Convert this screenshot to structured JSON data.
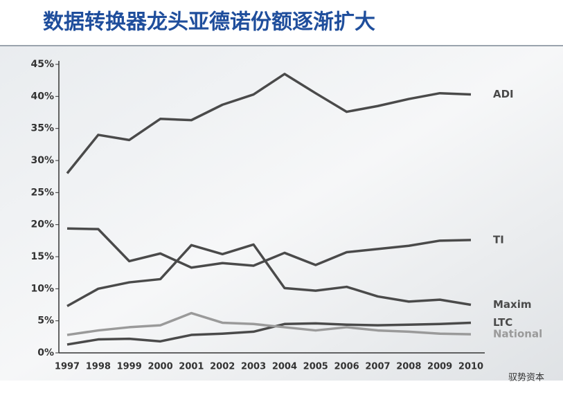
{
  "chart_data": {
    "type": "line",
    "title": "数据转换器龙头亚德诺份额逐渐扩大",
    "categories": [
      "1997",
      "1998",
      "1999",
      "2000",
      "2001",
      "2002",
      "2003",
      "2004",
      "2005",
      "2006",
      "2007",
      "2008",
      "2009",
      "2010"
    ],
    "series": [
      {
        "name": "ADI",
        "color": "#4a4a4a",
        "values": [
          28,
          34,
          33.2,
          36.5,
          36.3,
          38.7,
          40.3,
          43.5,
          40.5,
          37.6,
          38.5,
          39.6,
          40.5,
          40.3
        ]
      },
      {
        "name": "TI",
        "color": "#4a4a4a",
        "values": [
          19.4,
          19.3,
          14.3,
          15.5,
          13.3,
          14,
          13.6,
          15.6,
          13.7,
          15.7,
          16.2,
          16.7,
          17.5,
          17.6
        ]
      },
      {
        "name": "Maxim",
        "color": "#4a4a4a",
        "values": [
          7.3,
          10,
          11,
          11.5,
          16.8,
          15.4,
          16.9,
          10.1,
          9.7,
          10.3,
          8.8,
          8,
          8.3,
          7.5
        ]
      },
      {
        "name": "LTC",
        "color": "#4a4a4a",
        "values": [
          1.3,
          2.1,
          2.2,
          1.8,
          2.8,
          3,
          3.3,
          4.5,
          4.6,
          4.4,
          4.3,
          4.4,
          4.5,
          4.7
        ]
      },
      {
        "name": "National",
        "color": "#9a9a9a",
        "values": [
          2.8,
          3.5,
          4,
          4.3,
          6.2,
          4.7,
          4.5,
          4,
          3.5,
          4,
          3.5,
          3.3,
          3,
          2.9
        ]
      }
    ],
    "ylim": [
      0,
      45
    ],
    "yticks": [
      {
        "value": 0,
        "label": "0%"
      },
      {
        "value": 5,
        "label": "5%"
      },
      {
        "value": 10,
        "label": "10%"
      },
      {
        "value": 15,
        "label": "15%"
      },
      {
        "value": 20,
        "label": "20%"
      },
      {
        "value": 25,
        "label": "25%"
      },
      {
        "value": 30,
        "label": "30%"
      },
      {
        "value": 35,
        "label": "35%"
      },
      {
        "value": 40,
        "label": "40%"
      },
      {
        "value": 45,
        "label": "45%"
      }
    ],
    "watermark": "驭势资本"
  }
}
